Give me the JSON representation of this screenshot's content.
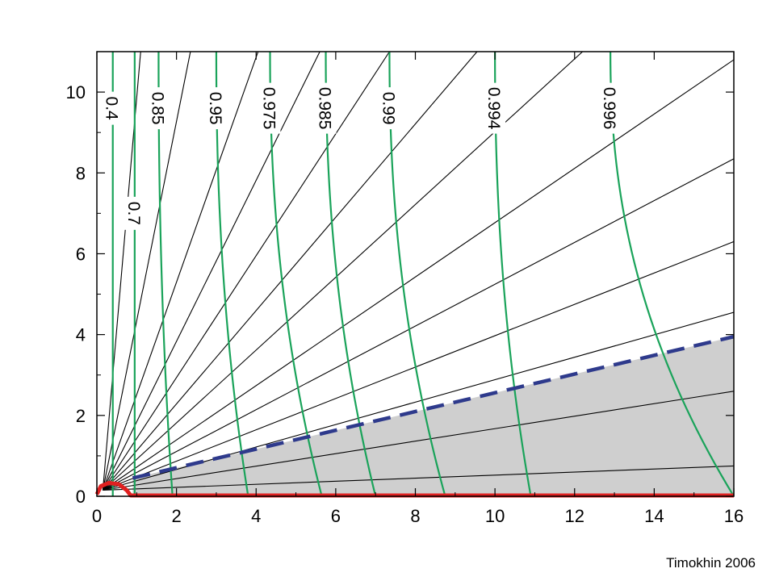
{
  "credit": "Timokhin 2006",
  "chart_data": {
    "type": "line",
    "xlim": [
      0,
      16
    ],
    "ylim": [
      0,
      11
    ],
    "x_ticks": [
      "0",
      "2",
      "4",
      "6",
      "8",
      "10",
      "12",
      "14",
      "16"
    ],
    "y_ticks": [
      "0",
      "2",
      "4",
      "6",
      "8",
      "10"
    ],
    "grid": false,
    "shaded_region": {
      "color": "#cfcfcf",
      "boundary": [
        [
          0.9,
          0.45
        ],
        [
          16,
          3.95
        ]
      ]
    },
    "dashed_line": {
      "color": "#2e3a8c",
      "points": [
        [
          0.9,
          0.45
        ],
        [
          16,
          3.95
        ]
      ]
    },
    "field_lines": {
      "color": "#000000",
      "end_points": [
        [
          1.1,
          11
        ],
        [
          2.35,
          11
        ],
        [
          4.05,
          11
        ],
        [
          5.6,
          11
        ],
        [
          7.35,
          11
        ],
        [
          9.55,
          11
        ],
        [
          12.2,
          11
        ],
        [
          16,
          10.8
        ],
        [
          16,
          8.35
        ],
        [
          16,
          6.3
        ],
        [
          16,
          4.55
        ],
        [
          16,
          2.6
        ],
        [
          16,
          0.75
        ]
      ]
    },
    "contours": [
      {
        "label": "0.4",
        "x_top": 0.4,
        "x_bottom": 0.4,
        "label_y": 9.6
      },
      {
        "label": "0.7",
        "x_top": 0.95,
        "x_bottom": 0.95,
        "label_y": 7.0
      },
      {
        "label": "0.85",
        "x_top": 1.55,
        "x_bottom": 1.9,
        "label_y": 9.6
      },
      {
        "label": "0.95",
        "x_top": 3.0,
        "x_bottom": 3.8,
        "label_y": 9.6
      },
      {
        "label": "0.975",
        "x_top": 4.35,
        "x_bottom": 5.65,
        "label_y": 9.6
      },
      {
        "label": "0.985",
        "x_top": 5.75,
        "x_bottom": 7.0,
        "label_y": 9.6
      },
      {
        "label": "0.99",
        "x_top": 7.35,
        "x_bottom": 8.75,
        "label_y": 9.6
      },
      {
        "label": "0.994",
        "x_top": 10.0,
        "x_bottom": 10.9,
        "label_y": 9.6
      },
      {
        "label": "0.996",
        "x_top": 12.9,
        "x_bottom": 16.0,
        "label_y": 9.6
      }
    ],
    "red_boundary": {
      "color": "#e02020",
      "points": [
        [
          0,
          0.05
        ],
        [
          0.1,
          0.25
        ],
        [
          0.3,
          0.33
        ],
        [
          0.55,
          0.3
        ],
        [
          0.75,
          0.15
        ],
        [
          0.85,
          0.02
        ],
        [
          16,
          0.02
        ]
      ]
    }
  }
}
